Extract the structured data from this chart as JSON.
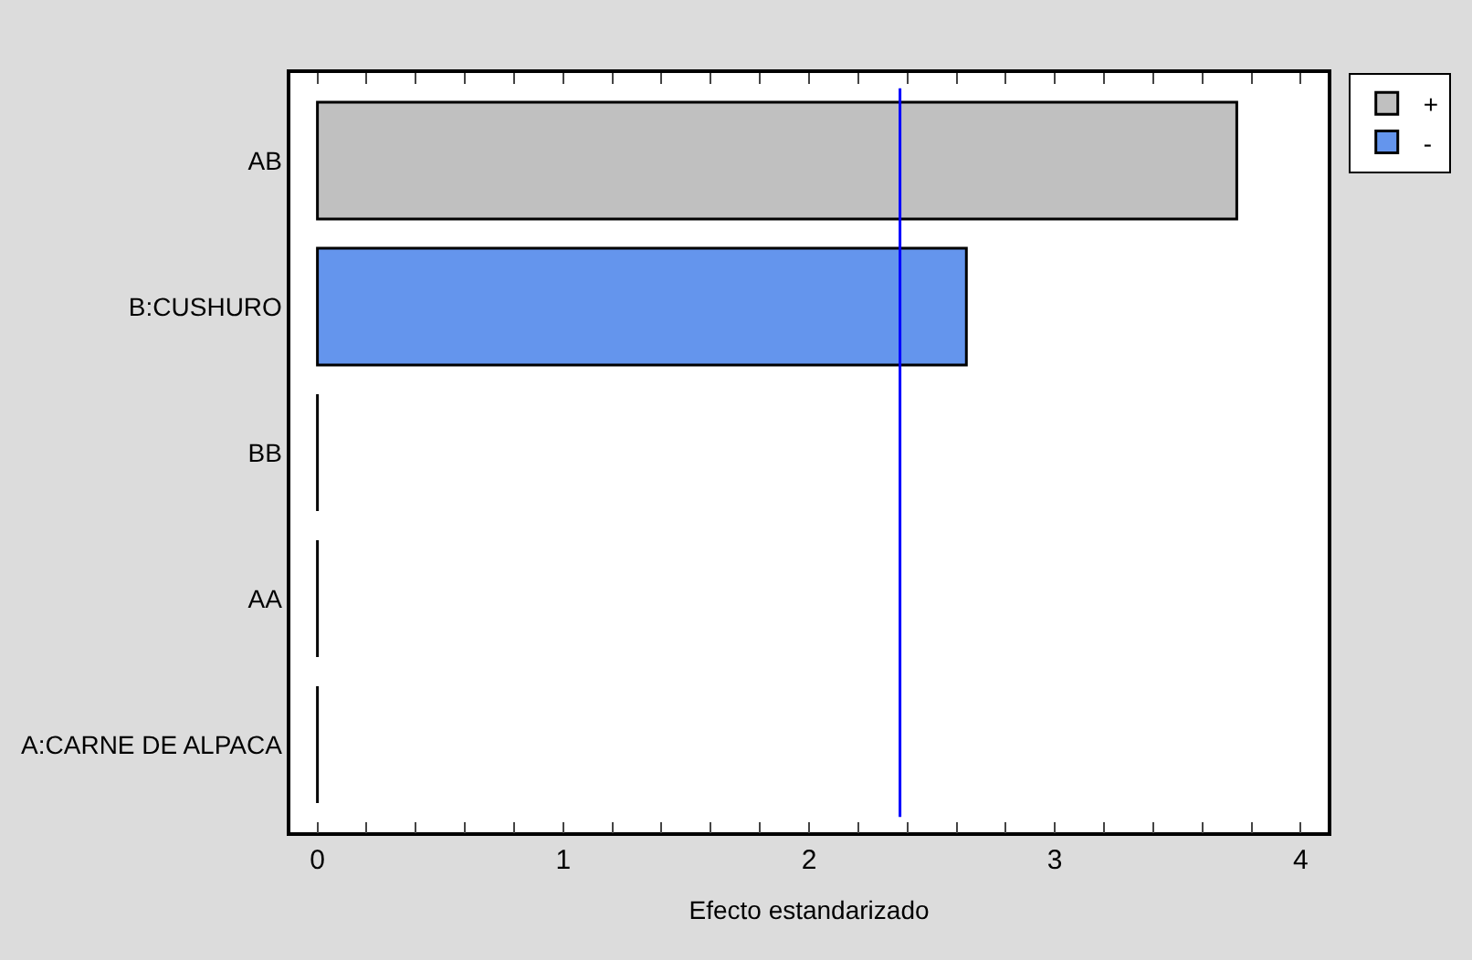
{
  "chart_data": {
    "type": "bar",
    "orientation": "horizontal",
    "xlabel": "Efecto estandarizado",
    "categories": [
      "AB",
      "B:CUSHURO",
      "BB",
      "AA",
      "A:CARNE DE ALPACA"
    ],
    "series": [
      {
        "name": "+",
        "color": "#c0c0c0",
        "colors": [
          "#c0c0c0",
          "#c0c0c0",
          "#000000",
          "#000000",
          "#000000"
        ],
        "values": [
          3.74,
          null,
          0,
          0,
          0
        ]
      },
      {
        "name": "-",
        "color": "#6495ed",
        "values": [
          null,
          2.64,
          null,
          null,
          null
        ]
      }
    ],
    "xlim": [
      -0.11,
      4.11
    ],
    "xticks": [
      0,
      {
        "value": 0.2,
        "label": null
      },
      {
        "value": 0.4,
        "label": null
      },
      {
        "value": 0.6,
        "label": null
      },
      {
        "value": 0.8,
        "label": null
      },
      1,
      {
        "value": 1.2,
        "label": null
      },
      {
        "value": 1.4,
        "label": null
      },
      {
        "value": 1.6,
        "label": null
      },
      {
        "value": 1.8,
        "label": null
      },
      2,
      {
        "value": 2.2,
        "label": null
      },
      {
        "value": 2.4,
        "label": null
      },
      {
        "value": 2.6,
        "label": null
      },
      {
        "value": 2.8,
        "label": null
      },
      3,
      {
        "value": 3.2,
        "label": null
      },
      {
        "value": 3.4,
        "label": null
      },
      {
        "value": 3.6,
        "label": null
      },
      {
        "value": 3.8,
        "label": null
      },
      4
    ],
    "ref_lines": [
      {
        "axis": "x",
        "value": 2.37,
        "color": "#0000ff"
      }
    ],
    "legend": "top right"
  }
}
